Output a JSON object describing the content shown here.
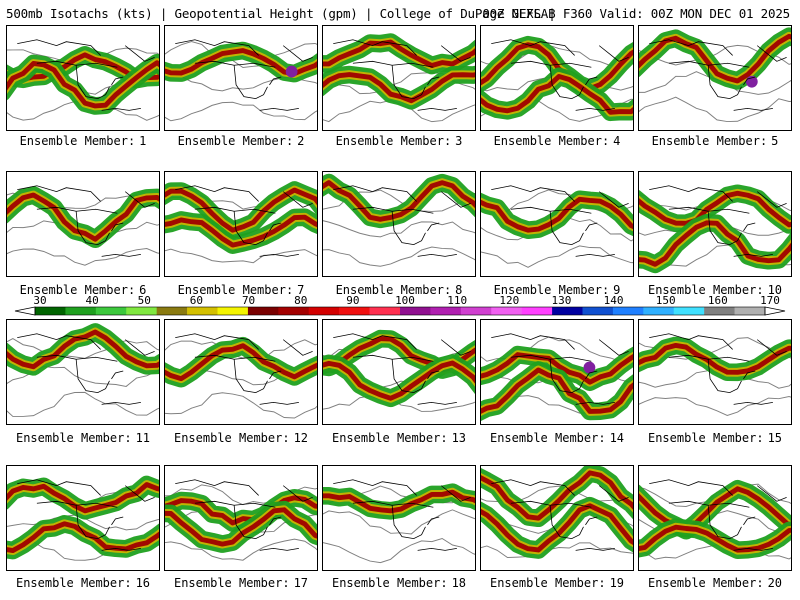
{
  "header": {
    "title": "500mb Isotachs (kts) | Geopotential Height (gpm) | College of DuPage NEXLAB",
    "valid": "00Z GEFS | F360 Valid: 00Z MON DEC 01 2025"
  },
  "caption_prefix": "Ensemble Member:",
  "members": [
    "1",
    "2",
    "3",
    "4",
    "5",
    "6",
    "7",
    "8",
    "9",
    "10",
    "11",
    "12",
    "13",
    "14",
    "15",
    "16",
    "17",
    "18",
    "19",
    "20"
  ],
  "colorbar": {
    "labels": [
      "30",
      "40",
      "50",
      "60",
      "70",
      "80",
      "90",
      "100",
      "110",
      "120",
      "130",
      "140",
      "150",
      "160",
      "170"
    ],
    "colors": [
      "#006400",
      "#1fa01f",
      "#3cc83c",
      "#80e840",
      "#8a7a10",
      "#d4c000",
      "#f4f400",
      "#7a0000",
      "#a40000",
      "#d40000",
      "#f01010",
      "#ff3050",
      "#901090",
      "#b020b0",
      "#d040d0",
      "#f060f0",
      "#ff40ff",
      "#0000a0",
      "#1050d0",
      "#2080ff",
      "#30b0ff",
      "#40e0ff",
      "#808080",
      "#b0b0b0"
    ]
  },
  "colors": {
    "land_outline": "#000000",
    "height_contour": "#808080",
    "jet_weak": "#1fa01f",
    "jet_mid": "#c8b400",
    "jet_strong": "#a00000",
    "jet_max": "#8020a0"
  }
}
